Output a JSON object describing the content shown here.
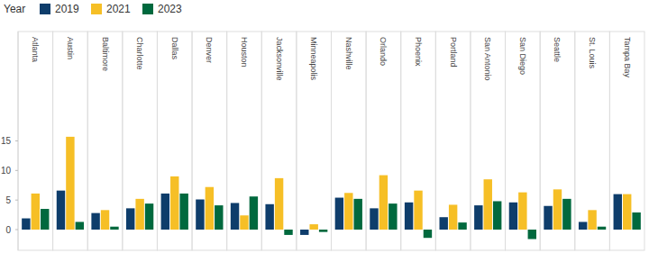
{
  "chart_data": {
    "type": "bar",
    "legend_title": "Year",
    "categories": [
      "Atlanta",
      "Austin",
      "Baltimore",
      "Charlotte",
      "Dallas",
      "Denver",
      "Houston",
      "Jacksonville",
      "Minneapolis",
      "Nashville",
      "Orlando",
      "Phoenix",
      "Portland",
      "San Antonio",
      "San Diego",
      "Seattle",
      "St. Louis",
      "Tampa Bay"
    ],
    "series": [
      {
        "name": "2019",
        "color": "#0e3d6b",
        "values": [
          1.9,
          6.6,
          2.8,
          3.6,
          6.1,
          5.1,
          4.5,
          4.3,
          -0.9,
          5.4,
          3.6,
          4.6,
          2.1,
          4.1,
          4.6,
          4.0,
          1.3,
          6.0
        ]
      },
      {
        "name": "2021",
        "color": "#f6bf26",
        "values": [
          6.1,
          15.7,
          3.3,
          5.2,
          9.0,
          7.2,
          2.4,
          8.7,
          0.9,
          6.2,
          9.2,
          6.6,
          4.2,
          8.5,
          6.3,
          6.8,
          3.3,
          6.0
        ]
      },
      {
        "name": "2023",
        "color": "#00693e",
        "values": [
          3.5,
          1.3,
          0.5,
          4.4,
          6.1,
          4.1,
          5.6,
          -0.9,
          -0.4,
          5.2,
          4.4,
          -1.4,
          1.2,
          4.8,
          -1.6,
          5.2,
          0.5,
          2.9
        ]
      }
    ],
    "ylim": [
      -3.5,
      33.5
    ],
    "yticks": [
      0,
      5,
      10,
      15
    ],
    "grid": false,
    "legend": "top-left"
  }
}
